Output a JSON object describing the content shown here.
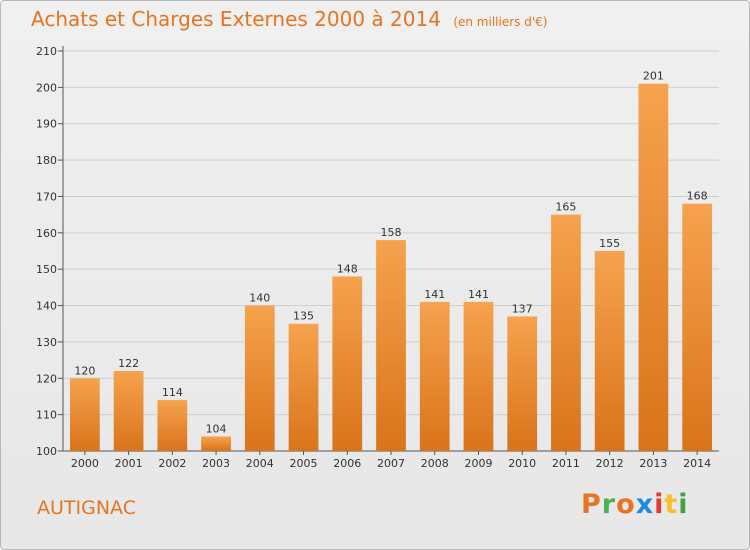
{
  "header": {
    "title": "Achats et Charges Externes 2000 à 2014",
    "subtitle": "(en milliers d'€)"
  },
  "footer": {
    "place": "AUTIGNAC",
    "logo": "Proxiti",
    "logo_colors": [
      "#e8741f",
      "#4caf50",
      "#e8741f",
      "#1e88e5",
      "#e53935",
      "#fbc02d",
      "#43a047"
    ]
  },
  "colors": {
    "accent": "#e8741f",
    "bar_light": "#f6a24e",
    "bar_dark": "#d9741a",
    "grid": "#cfcfcf",
    "axis_text": "#333333"
  },
  "chart_data": {
    "type": "bar",
    "title": "Achats et Charges Externes 2000 à 2014",
    "subtitle": "(en milliers d'€)",
    "xlabel": "",
    "ylabel": "",
    "categories": [
      "2000",
      "2001",
      "2002",
      "2003",
      "2004",
      "2005",
      "2006",
      "2007",
      "2008",
      "2009",
      "2010",
      "2011",
      "2012",
      "2013",
      "2014"
    ],
    "values": [
      120,
      122,
      114,
      104,
      140,
      135,
      148,
      158,
      141,
      141,
      137,
      165,
      155,
      201,
      168
    ],
    "ylim": [
      100,
      210
    ],
    "yticks": [
      100,
      110,
      120,
      130,
      140,
      150,
      160,
      170,
      180,
      190,
      200,
      210
    ],
    "grid": true,
    "data_labels": true
  }
}
